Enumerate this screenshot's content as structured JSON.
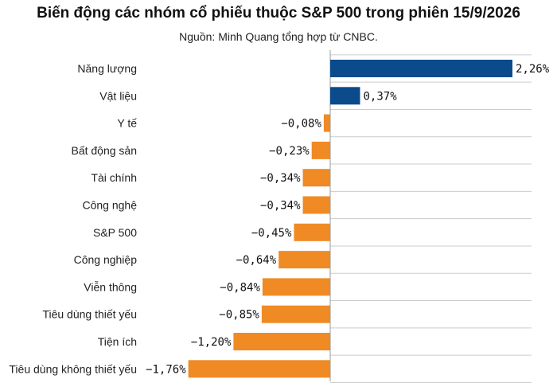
{
  "header": {
    "title": "Biến động các nhóm cổ phiếu thuộc S&P 500 trong phiên 15/9/2026",
    "source": "Nguồn: Minh Quang tổng hợp từ CNBC."
  },
  "colors": {
    "positive": "#0b4a8b",
    "negative": "#f08a24",
    "gridline": "#cccccc",
    "axis": "#999999"
  },
  "chart_data": {
    "type": "bar",
    "orientation": "horizontal",
    "title": "Biến động các nhóm cổ phiếu thuộc S&P 500 trong phiên 15/9/2026",
    "xlabel": "",
    "ylabel": "",
    "unit": "%",
    "grid": true,
    "legend": "none",
    "xlim": [
      -1.76,
      2.26
    ],
    "categories": [
      "Năng lượng",
      "Vật liệu",
      "Y tế",
      "Bất động sản",
      "Tài chính",
      "Công nghệ",
      "S&P 500",
      "Công nghiệp",
      "Viễn thông",
      "Tiêu dùng thiết yếu",
      "Tiện ích",
      "Tiêu dùng không thiết yếu"
    ],
    "values": [
      2.26,
      0.37,
      -0.08,
      -0.23,
      -0.34,
      -0.34,
      -0.45,
      -0.64,
      -0.84,
      -0.85,
      -1.2,
      -1.76
    ],
    "value_labels": [
      "2,26%",
      "0,37%",
      "−0,08%",
      "−0,23%",
      "−0,34%",
      "−0,34%",
      "−0,45%",
      "−0,64%",
      "−0,84%",
      "−0,85%",
      "−1,20%",
      "−1,76%"
    ]
  }
}
